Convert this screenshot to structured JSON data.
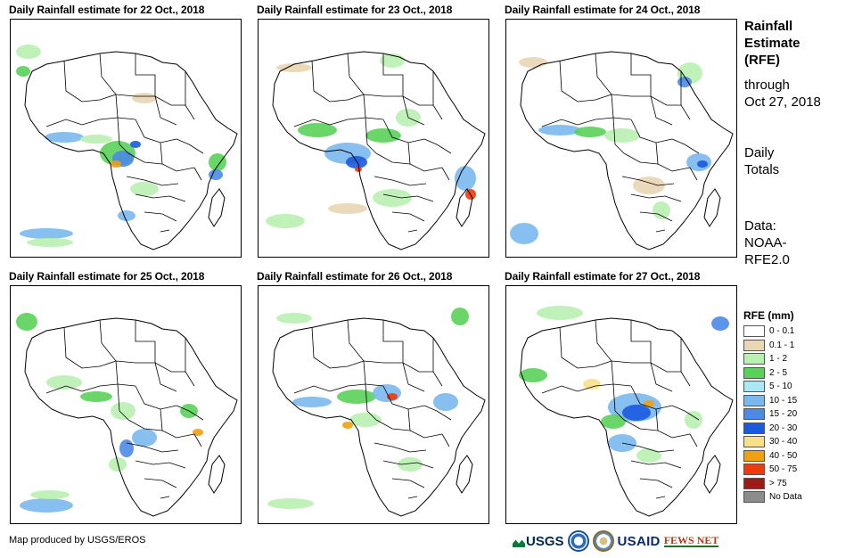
{
  "panels": [
    {
      "title": "Daily Rainfall estimate for 22 Oct., 2018"
    },
    {
      "title": "Daily Rainfall estimate for 23 Oct., 2018"
    },
    {
      "title": "Daily Rainfall estimate for 24 Oct., 2018"
    },
    {
      "title": "Daily Rainfall estimate for 25 Oct., 2018"
    },
    {
      "title": "Daily Rainfall estimate for 26 Oct., 2018"
    },
    {
      "title": "Daily Rainfall estimate for 27 Oct., 2018"
    }
  ],
  "side": {
    "title_lines": [
      "Rainfall",
      "Estimate",
      "(RFE)"
    ],
    "through_lines": [
      "through",
      "Oct 27, 2018"
    ],
    "totals_lines": [
      "Daily",
      "Totals"
    ],
    "data_lines": [
      "Data:",
      "NOAA-",
      "RFE2.0"
    ]
  },
  "legend": {
    "title": "RFE (mm)",
    "items": [
      {
        "label": "0 - 0.1",
        "color": "#ffffff"
      },
      {
        "label": "0.1 - 1",
        "color": "#e8d6b4"
      },
      {
        "label": "1 - 2",
        "color": "#b8f0b0"
      },
      {
        "label": "2 - 5",
        "color": "#5ad25a"
      },
      {
        "label": "5 - 10",
        "color": "#aae8f4"
      },
      {
        "label": "10 - 15",
        "color": "#7ab8f0"
      },
      {
        "label": "15 - 20",
        "color": "#4a8ae8"
      },
      {
        "label": "20 - 30",
        "color": "#1a5ae0"
      },
      {
        "label": "30 - 40",
        "color": "#f8e088"
      },
      {
        "label": "40 - 50",
        "color": "#f0a010"
      },
      {
        "label": "50 - 75",
        "color": "#f03a0a"
      },
      {
        "label": "> 75",
        "color": "#a01818"
      },
      {
        "label": "No Data",
        "color": "#8c8c8c"
      }
    ]
  },
  "credit": "Map produced by USGS/EROS",
  "logos": {
    "usgs": "USGS",
    "usaid": "USAID",
    "fews": "FEWS NET"
  }
}
